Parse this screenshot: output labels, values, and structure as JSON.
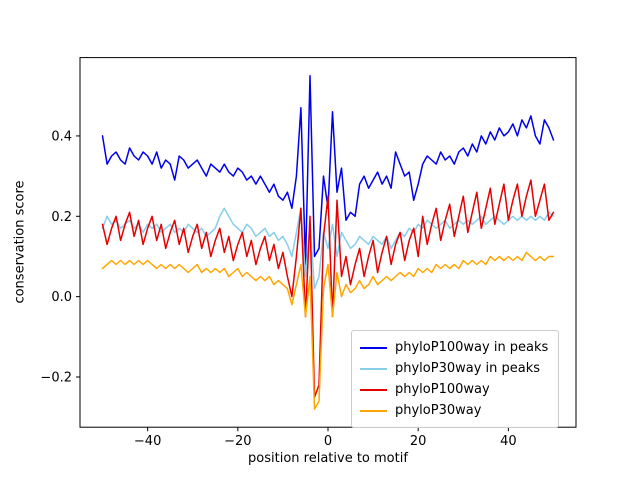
{
  "chart_data": {
    "type": "line",
    "title": "",
    "xlabel": "position relative to motif",
    "ylabel": "conservation score",
    "xlim": [
      -55,
      55
    ],
    "ylim": [
      -0.325,
      0.595
    ],
    "xticks": [
      -40,
      -20,
      0,
      20,
      40
    ],
    "xtick_labels": [
      "−40",
      "−20",
      "0",
      "20",
      "40"
    ],
    "yticks": [
      -0.2,
      0.0,
      0.2,
      0.4
    ],
    "ytick_labels": [
      "−0.2",
      "0.0",
      "0.2",
      "0.4"
    ],
    "grid": false,
    "legend_position": "lower right",
    "x": [
      -50,
      -49,
      -48,
      -47,
      -46,
      -45,
      -44,
      -43,
      -42,
      -41,
      -40,
      -39,
      -38,
      -37,
      -36,
      -35,
      -34,
      -33,
      -32,
      -31,
      -30,
      -29,
      -28,
      -27,
      -26,
      -25,
      -24,
      -23,
      -22,
      -21,
      -20,
      -19,
      -18,
      -17,
      -16,
      -15,
      -14,
      -13,
      -12,
      -11,
      -10,
      -9,
      -8,
      -7,
      -6,
      -5,
      -4,
      -3,
      -2,
      -1,
      0,
      1,
      2,
      3,
      4,
      5,
      6,
      7,
      8,
      9,
      10,
      11,
      12,
      13,
      14,
      15,
      16,
      17,
      18,
      19,
      20,
      21,
      22,
      23,
      24,
      25,
      26,
      27,
      28,
      29,
      30,
      31,
      32,
      33,
      34,
      35,
      36,
      37,
      38,
      39,
      40,
      41,
      42,
      43,
      44,
      45,
      46,
      47,
      48,
      49,
      50
    ],
    "series": [
      {
        "name": "phyloP100way in peaks",
        "color": "#0000ee",
        "values": [
          0.4,
          0.33,
          0.35,
          0.36,
          0.34,
          0.33,
          0.37,
          0.35,
          0.34,
          0.36,
          0.35,
          0.33,
          0.36,
          0.32,
          0.34,
          0.33,
          0.29,
          0.35,
          0.34,
          0.32,
          0.33,
          0.34,
          0.32,
          0.3,
          0.33,
          0.32,
          0.31,
          0.33,
          0.31,
          0.3,
          0.32,
          0.31,
          0.29,
          0.3,
          0.28,
          0.3,
          0.28,
          0.26,
          0.28,
          0.25,
          0.24,
          0.26,
          0.22,
          0.3,
          0.47,
          0.08,
          0.55,
          0.1,
          0.12,
          0.3,
          0.22,
          0.46,
          0.26,
          0.32,
          0.19,
          0.21,
          0.2,
          0.28,
          0.3,
          0.27,
          0.29,
          0.31,
          0.28,
          0.3,
          0.27,
          0.36,
          0.33,
          0.3,
          0.31,
          0.24,
          0.28,
          0.33,
          0.35,
          0.34,
          0.33,
          0.36,
          0.34,
          0.35,
          0.33,
          0.36,
          0.37,
          0.35,
          0.38,
          0.36,
          0.4,
          0.38,
          0.41,
          0.39,
          0.42,
          0.4,
          0.41,
          0.43,
          0.4,
          0.44,
          0.42,
          0.45,
          0.4,
          0.38,
          0.44,
          0.42,
          0.39
        ]
      },
      {
        "name": "phyloP30way in peaks",
        "color": "#87ceeb",
        "values": [
          0.17,
          0.2,
          0.18,
          0.19,
          0.17,
          0.18,
          0.19,
          0.17,
          0.18,
          0.16,
          0.18,
          0.17,
          0.18,
          0.16,
          0.17,
          0.18,
          0.16,
          0.17,
          0.16,
          0.18,
          0.17,
          0.16,
          0.17,
          0.15,
          0.16,
          0.17,
          0.2,
          0.22,
          0.2,
          0.18,
          0.17,
          0.16,
          0.18,
          0.17,
          0.15,
          0.16,
          0.17,
          0.15,
          0.16,
          0.14,
          0.15,
          0.13,
          0.1,
          0.16,
          0.22,
          0.05,
          0.18,
          0.02,
          0.05,
          0.16,
          0.12,
          0.18,
          0.1,
          0.16,
          0.14,
          0.12,
          0.13,
          0.15,
          0.14,
          0.13,
          0.15,
          0.14,
          0.13,
          0.15,
          0.12,
          0.14,
          0.16,
          0.15,
          0.17,
          0.16,
          0.18,
          0.17,
          0.19,
          0.18,
          0.17,
          0.18,
          0.19,
          0.17,
          0.18,
          0.19,
          0.18,
          0.19,
          0.18,
          0.19,
          0.2,
          0.18,
          0.19,
          0.2,
          0.19,
          0.18,
          0.19,
          0.2,
          0.19,
          0.2,
          0.19,
          0.2,
          0.19,
          0.2,
          0.19,
          0.21,
          0.2
        ]
      },
      {
        "name": "phyloP100way",
        "color": "#e60000",
        "values": [
          0.18,
          0.13,
          0.17,
          0.2,
          0.14,
          0.18,
          0.21,
          0.15,
          0.19,
          0.13,
          0.17,
          0.2,
          0.14,
          0.18,
          0.12,
          0.16,
          0.19,
          0.13,
          0.17,
          0.11,
          0.15,
          0.18,
          0.12,
          0.16,
          0.1,
          0.14,
          0.17,
          0.11,
          0.15,
          0.09,
          0.13,
          0.16,
          0.1,
          0.14,
          0.08,
          0.12,
          0.15,
          0.09,
          0.13,
          0.07,
          0.11,
          0.05,
          0.0,
          0.1,
          0.22,
          -0.05,
          0.2,
          -0.25,
          -0.22,
          0.15,
          0.25,
          -0.05,
          0.24,
          0.05,
          0.1,
          0.03,
          0.08,
          0.12,
          0.05,
          0.1,
          0.14,
          0.06,
          0.11,
          0.15,
          0.08,
          0.13,
          0.16,
          0.09,
          0.14,
          0.17,
          0.1,
          0.2,
          0.13,
          0.18,
          0.22,
          0.14,
          0.19,
          0.23,
          0.15,
          0.2,
          0.25,
          0.16,
          0.21,
          0.26,
          0.17,
          0.22,
          0.27,
          0.18,
          0.23,
          0.28,
          0.19,
          0.24,
          0.28,
          0.2,
          0.25,
          0.29,
          0.2,
          0.24,
          0.28,
          0.19,
          0.21
        ]
      },
      {
        "name": "phyloP30way",
        "color": "#ffa500",
        "values": [
          0.07,
          0.08,
          0.09,
          0.08,
          0.09,
          0.08,
          0.09,
          0.08,
          0.09,
          0.08,
          0.09,
          0.08,
          0.07,
          0.08,
          0.07,
          0.08,
          0.07,
          0.08,
          0.07,
          0.06,
          0.07,
          0.08,
          0.06,
          0.07,
          0.06,
          0.07,
          0.06,
          0.07,
          0.05,
          0.06,
          0.07,
          0.05,
          0.06,
          0.05,
          0.04,
          0.05,
          0.04,
          0.05,
          0.03,
          0.04,
          0.03,
          0.02,
          -0.02,
          0.03,
          0.08,
          -0.05,
          0.05,
          -0.28,
          -0.26,
          0.02,
          0.08,
          -0.05,
          0.06,
          0.0,
          0.03,
          0.01,
          0.02,
          0.04,
          0.02,
          0.03,
          0.05,
          0.03,
          0.04,
          0.05,
          0.04,
          0.05,
          0.06,
          0.05,
          0.06,
          0.05,
          0.07,
          0.06,
          0.07,
          0.06,
          0.08,
          0.07,
          0.08,
          0.07,
          0.08,
          0.07,
          0.09,
          0.08,
          0.09,
          0.08,
          0.09,
          0.08,
          0.1,
          0.09,
          0.1,
          0.09,
          0.1,
          0.09,
          0.1,
          0.09,
          0.11,
          0.1,
          0.09,
          0.1,
          0.09,
          0.1,
          0.1
        ]
      }
    ]
  }
}
